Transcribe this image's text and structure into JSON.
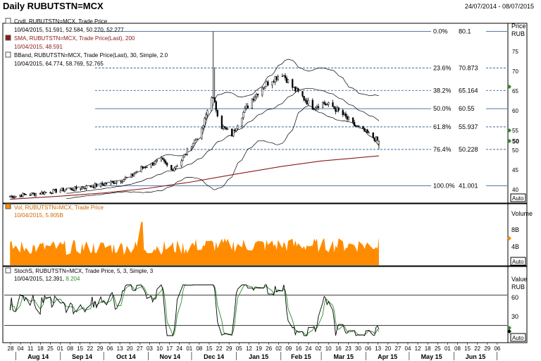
{
  "header": {
    "title": "Daily RUBUTSTN=MCX",
    "date_range": "24/07/2014 - 08/07/2015"
  },
  "price_panel": {
    "legend": [
      {
        "icon": "candle-icon",
        "name": "Cndl, RUBUTSTN=MCX, Trade Price",
        "values": "10/04/2015, 51.591, 52.584, 50.270, 52.277",
        "color": "#000000"
      },
      {
        "icon": "sma-line-icon",
        "name": "SMA, RUBUTSTN=MCX, Trade Price(Last), 200",
        "values": "10/04/2015, 48.591",
        "color": "#8b1a1a"
      },
      {
        "icon": "bband-icon",
        "name": "BBand, RUBUTSTN=MCX, Trade Price(Last), 30, Simple, 2.0",
        "values": "10/04/2015, 64.774, 58.769, 52.765",
        "color": "#000000"
      }
    ],
    "axis_title": "Price",
    "axis_unit": "RUB",
    "ylim": [
      37,
      82
    ],
    "ticks": [
      40,
      45,
      50,
      55,
      60,
      65,
      70,
      75
    ],
    "last_price_tick": "50",
    "auto_label": "Auto",
    "fib_levels": [
      {
        "label": "0.0%",
        "value_label": "80.1",
        "value": 80.1
      },
      {
        "label": "23.6%",
        "value_label": "70.873",
        "value": 70.873
      },
      {
        "label": "38.2%",
        "value_label": "65.164",
        "value": 65.164
      },
      {
        "label": "50.0%",
        "value_label": "60.55",
        "value": 60.55
      },
      {
        "label": "61.8%",
        "value_label": "55.937",
        "value": 55.937
      },
      {
        "label": "76.4%",
        "value_label": "50.228",
        "value": 50.228
      },
      {
        "label": "100.0%",
        "value_label": "41.001",
        "value": 41.001
      }
    ]
  },
  "volume_panel": {
    "legend": [
      {
        "icon": "volume-icon",
        "name": "Vol, RUBUTSTN=MCX, Trade Price",
        "values": "10/04/2015, 5.905B",
        "color": "#ff8c00"
      }
    ],
    "axis_title": "Volume",
    "ticks": [
      "8B",
      "4B"
    ],
    "auto_label": "Auto"
  },
  "stoch_panel": {
    "legend": [
      {
        "icon": "stoch-icon",
        "name": "StochS, RUBUTSTN=MCX, Trade Price, 5, 3, Simple, 3",
        "values": "10/04/2015, 12.391,",
        "values2": "8.204",
        "color": "#000000"
      }
    ],
    "axis_title": "Value",
    "axis_unit": "RUB",
    "ticks": [
      "60",
      "30"
    ],
    "auto_label": "Auto"
  },
  "x_axis": {
    "day_ticks": [
      "28",
      "04",
      "11",
      "18",
      "25",
      "01",
      "08",
      "15",
      "22",
      "29",
      "06",
      "13",
      "20",
      "27",
      "03",
      "10",
      "17",
      "24",
      "01",
      "08",
      "15",
      "22",
      "29",
      "05",
      "12",
      "19",
      "26",
      "02",
      "09",
      "16",
      "24",
      "02",
      "10",
      "16",
      "23",
      "30",
      "06",
      "13",
      "20",
      "27",
      "04",
      "12",
      "18",
      "25",
      "01",
      "08",
      "15",
      "22",
      "29",
      "06"
    ],
    "months": [
      "Aug 14",
      "Sep 14",
      "Oct 14",
      "Nov 14",
      "Dec 14",
      "Jan 15",
      "Feb 15",
      "Mar 15",
      "Apr 15",
      "May 15",
      "Jun 15"
    ]
  },
  "chart_data": {
    "type": "candlestick",
    "title": "Daily RUBUTSTN=MCX",
    "date_range": "24/07/2014 - 08/07/2015",
    "y_unit": "RUB",
    "price_ylim": [
      37,
      82
    ],
    "price_close_weekly": [
      {
        "date": "2014-07-28",
        "close": 38.3
      },
      {
        "date": "2014-08-04",
        "close": 38.6
      },
      {
        "date": "2014-08-11",
        "close": 38.9
      },
      {
        "date": "2014-08-18",
        "close": 39.2
      },
      {
        "date": "2014-08-25",
        "close": 39.5
      },
      {
        "date": "2014-09-01",
        "close": 39.9
      },
      {
        "date": "2014-09-08",
        "close": 40.1
      },
      {
        "date": "2014-09-15",
        "close": 40.5
      },
      {
        "date": "2014-09-22",
        "close": 40.9
      },
      {
        "date": "2014-09-29",
        "close": 41.3
      },
      {
        "date": "2014-10-06",
        "close": 41.8
      },
      {
        "date": "2014-10-13",
        "close": 42.4
      },
      {
        "date": "2014-10-20",
        "close": 43.5
      },
      {
        "date": "2014-10-27",
        "close": 45.5
      },
      {
        "date": "2014-11-03",
        "close": 46.5
      },
      {
        "date": "2014-11-10",
        "close": 47.5
      },
      {
        "date": "2014-11-17",
        "close": 45.0
      },
      {
        "date": "2014-11-24",
        "close": 47.5
      },
      {
        "date": "2014-12-01",
        "close": 51.5
      },
      {
        "date": "2014-12-08",
        "close": 55.0
      },
      {
        "date": "2014-12-15",
        "close": 64.0
      },
      {
        "date": "2014-12-22",
        "close": 56.0
      },
      {
        "date": "2014-12-29",
        "close": 54.0
      },
      {
        "date": "2015-01-05",
        "close": 59.0
      },
      {
        "date": "2015-01-12",
        "close": 63.0
      },
      {
        "date": "2015-01-19",
        "close": 66.0
      },
      {
        "date": "2015-01-26",
        "close": 68.0
      },
      {
        "date": "2015-02-02",
        "close": 69.5
      },
      {
        "date": "2015-02-09",
        "close": 66.0
      },
      {
        "date": "2015-02-16",
        "close": 63.5
      },
      {
        "date": "2015-02-23",
        "close": 61.0
      },
      {
        "date": "2015-03-02",
        "close": 62.0
      },
      {
        "date": "2015-03-09",
        "close": 61.0
      },
      {
        "date": "2015-03-16",
        "close": 59.0
      },
      {
        "date": "2015-03-23",
        "close": 56.5
      },
      {
        "date": "2015-03-30",
        "close": 55.0
      },
      {
        "date": "2015-04-10",
        "open": 51.591,
        "high": 52.584,
        "low": 50.27,
        "close": 52.277
      }
    ],
    "sma_200": [
      {
        "date": "2014-07-28",
        "value": 37.6
      },
      {
        "date": "2014-09-01",
        "value": 38.4
      },
      {
        "date": "2014-10-01",
        "value": 39.2
      },
      {
        "date": "2014-11-01",
        "value": 40.4
      },
      {
        "date": "2014-12-01",
        "value": 42.0
      },
      {
        "date": "2015-01-01",
        "value": 44.0
      },
      {
        "date": "2015-02-01",
        "value": 45.9
      },
      {
        "date": "2015-03-01",
        "value": 47.3
      },
      {
        "date": "2015-04-10",
        "value": 48.591
      }
    ],
    "bband_30": {
      "date": "2015-04-10",
      "upper": 64.774,
      "middle": 58.769,
      "lower": 52.765
    },
    "fibonacci": [
      {
        "pct": "0.0%",
        "value": 80.1
      },
      {
        "pct": "23.6%",
        "value": 70.873
      },
      {
        "pct": "38.2%",
        "value": 65.164
      },
      {
        "pct": "50.0%",
        "value": 60.55
      },
      {
        "pct": "61.8%",
        "value": 55.937
      },
      {
        "pct": "76.4%",
        "value": 50.228
      },
      {
        "pct": "100.0%",
        "value": 41.001
      }
    ],
    "volume_last": "5.905B",
    "stochastic_last": {
      "k": 12.391,
      "d": 8.204
    }
  }
}
